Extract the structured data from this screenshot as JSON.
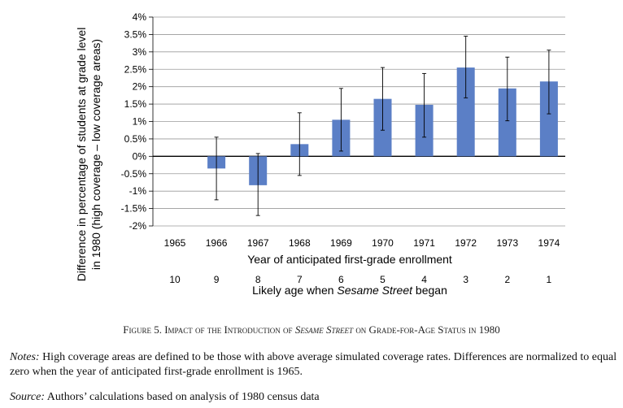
{
  "chart_data": {
    "type": "bar",
    "categories": [
      "1965",
      "1966",
      "1967",
      "1968",
      "1969",
      "1970",
      "1971",
      "1972",
      "1973",
      "1974"
    ],
    "age_labels": [
      "10",
      "9",
      "8",
      "7",
      "6",
      "5",
      "4",
      "3",
      "2",
      "1"
    ],
    "values": [
      0.0,
      -0.35,
      -0.83,
      0.35,
      1.05,
      1.65,
      1.48,
      2.55,
      1.95,
      2.15
    ],
    "error_bars": [
      {
        "low": null,
        "high": null
      },
      {
        "low": -1.25,
        "high": 0.55
      },
      {
        "low": -1.7,
        "high": 0.08
      },
      {
        "low": -0.55,
        "high": 1.25
      },
      {
        "low": 0.15,
        "high": 1.95
      },
      {
        "low": 0.75,
        "high": 2.55
      },
      {
        "low": 0.55,
        "high": 2.38
      },
      {
        "low": 1.68,
        "high": 3.45
      },
      {
        "low": 1.02,
        "high": 2.85
      },
      {
        "low": 1.22,
        "high": 3.05
      }
    ],
    "ylim": [
      -2,
      4
    ],
    "yticks": [
      "4%",
      "3.5%",
      "3%",
      "2.5%",
      "2%",
      "1.5%",
      "1%",
      "0.5%",
      "0%",
      "-0.5%",
      "-1%",
      "-1.5%",
      "-2%"
    ],
    "xlabel": "Year of anticipated first-grade enrollment",
    "xlabel2_prefix": "Likely age when ",
    "xlabel2_italic": "Sesame Street",
    "xlabel2_suffix": " began",
    "ylabel_line1": "Difference in percentage of students at grade level",
    "ylabel_line2": "in 1980 (high coverage – low coverage areas)",
    "grid": true,
    "bar_color": "#5B7FC6"
  },
  "caption": {
    "prefix": "Figure 5. Impact of the Introduction of ",
    "italic": "Sesame Street",
    "suffix": " on Grade-for-Age Status in 1980"
  },
  "notes": {
    "label": "Notes:",
    "text": " High coverage areas are defined to be those with above average simulated coverage rates. Differences are normalized to equal zero when the year of anticipated first-grade enrollment is 1965."
  },
  "source": {
    "label": "Source:",
    "text": " Authors’ calculations based on analysis of 1980 census data"
  }
}
